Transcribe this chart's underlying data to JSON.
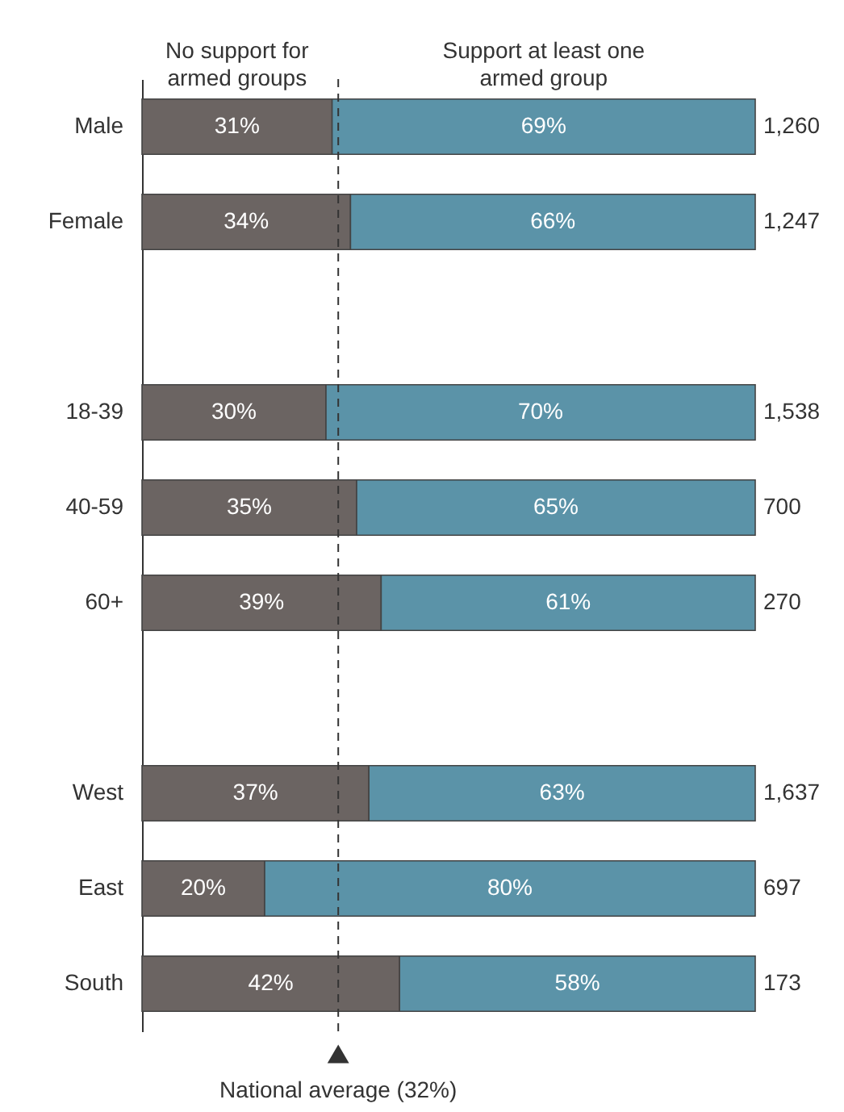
{
  "chart_data": {
    "type": "bar",
    "orientation": "horizontal",
    "stacked": true,
    "categories": [
      "Male",
      "Female",
      null,
      "18-39",
      "40-59",
      "60+",
      null,
      "West",
      "East",
      "South"
    ],
    "series": [
      {
        "name": "No support for\narmed groups",
        "color": "#6b6462",
        "values": [
          31,
          34,
          null,
          30,
          35,
          39,
          null,
          37,
          20,
          42
        ],
        "value_labels": [
          "31%",
          "34%",
          null,
          "30%",
          "35%",
          "39%",
          null,
          "37%",
          "20%",
          "42%"
        ]
      },
      {
        "name": "Support at least one\narmed group",
        "color": "#5b93a8",
        "values": [
          69,
          66,
          null,
          70,
          65,
          61,
          null,
          63,
          80,
          58
        ],
        "value_labels": [
          "69%",
          "66%",
          null,
          "70%",
          "65%",
          "61%",
          null,
          "63%",
          "80%",
          "58%"
        ]
      }
    ],
    "annotations": [
      "1,260",
      "1,247",
      "1,538",
      "700",
      "270",
      "1,637",
      "697",
      "173"
    ],
    "xlim": [
      0,
      100
    ],
    "ref_lines": [
      {
        "axis": "x",
        "value": 32,
        "label": "National average (32%)",
        "line_style": "dashed",
        "color": "#333333"
      }
    ],
    "legend": false,
    "grid": false,
    "tick_labels": "y"
  }
}
